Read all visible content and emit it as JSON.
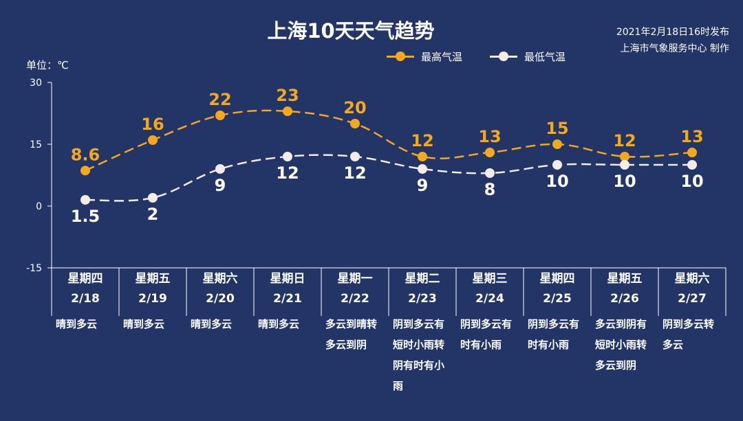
{
  "header": {
    "title": "上海10天天气趋势",
    "publish_time": "2021年2月18日16时发布",
    "publisher": "上海市气象服务中心 制作",
    "unit_label": "单位：℃"
  },
  "colors": {
    "background": "#233467",
    "high": "#F5A81C",
    "low": "#F4ECEA",
    "axis": "#FFFFFF"
  },
  "days": [
    {
      "weekday": "星期四",
      "date": "2/18",
      "weather": "晴到多云"
    },
    {
      "weekday": "星期五",
      "date": "2/19",
      "weather": "晴到多云"
    },
    {
      "weekday": "星期六",
      "date": "2/20",
      "weather": "晴到多云"
    },
    {
      "weekday": "星期日",
      "date": "2/21",
      "weather": "晴到多云"
    },
    {
      "weekday": "星期一",
      "date": "2/22",
      "weather": "多云到晴转多云到阴"
    },
    {
      "weekday": "星期二",
      "date": "2/23",
      "weather": "阴到多云有短时小雨转阴有时有小雨"
    },
    {
      "weekday": "星期三",
      "date": "2/24",
      "weather": "阴到多云有时有小雨"
    },
    {
      "weekday": "星期四",
      "date": "2/25",
      "weather": "阴到多云有时有小雨"
    },
    {
      "weekday": "星期五",
      "date": "2/26",
      "weather": "多云到阴有短时小雨转多云到阴"
    },
    {
      "weekday": "星期六",
      "date": "2/27",
      "weather": "阴到多云转多云"
    }
  ],
  "chart_data": {
    "type": "line",
    "title": "上海10天天气趋势",
    "categories": [
      "2/18",
      "2/19",
      "2/20",
      "2/21",
      "2/22",
      "2/23",
      "2/24",
      "2/25",
      "2/26",
      "2/27"
    ],
    "series": [
      {
        "name": "最高气温",
        "values": [
          8.6,
          16,
          22,
          23,
          20,
          12,
          13,
          15,
          12,
          13
        ],
        "labels": [
          "8.6",
          "16",
          "22",
          "23",
          "20",
          "12",
          "13",
          "15",
          "12",
          "13"
        ],
        "color": "#F5A81C",
        "line_style": "dashed"
      },
      {
        "name": "最低气温",
        "values": [
          1.5,
          2,
          9,
          12,
          12,
          9,
          8,
          10,
          10,
          10
        ],
        "labels": [
          "1.5",
          "2",
          "9",
          "12",
          "12",
          "9",
          "8",
          "10",
          "10",
          "10"
        ],
        "color": "#F4ECEA",
        "line_style": "dashed"
      }
    ],
    "ylim": [
      -15,
      30
    ],
    "yticks": [
      -15,
      0,
      15,
      30
    ],
    "ytick_labels": [
      "-15",
      "0",
      "15",
      "30"
    ],
    "ylabel": "单位：℃",
    "xlabel": "",
    "grid": false,
    "legend_position": "top-center"
  }
}
